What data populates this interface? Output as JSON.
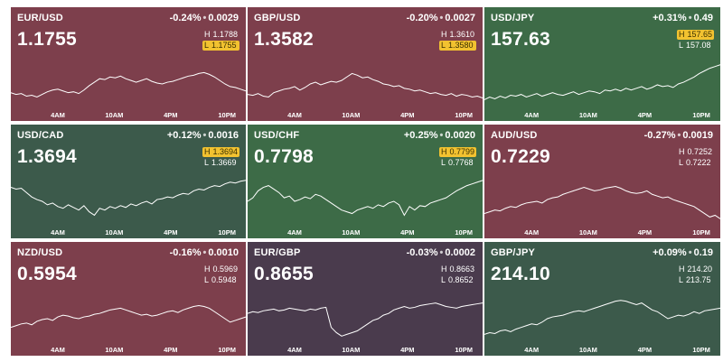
{
  "colors": {
    "down": "#7d3f4c",
    "up": "#3d6b47",
    "flat": "#4a3b4d"
  },
  "axis_labels": [
    "4AM",
    "10AM",
    "4PM",
    "10PM"
  ],
  "tiles": [
    {
      "symbol": "EUR/USD",
      "change_pct": "-0.24%",
      "change_abs": "0.0029",
      "price": "1.1755",
      "high_label": "H",
      "high": "1.1788",
      "low_label": "L",
      "low": "1.1755",
      "highlight": "low",
      "tone": "down",
      "trend": [
        40,
        42,
        41,
        44,
        43,
        45,
        42,
        39,
        37,
        36,
        38,
        40,
        39,
        41,
        37,
        32,
        28,
        24,
        25,
        22,
        23,
        21,
        24,
        26,
        28,
        26,
        24,
        27,
        29,
        30,
        28,
        27,
        25,
        23,
        21,
        20,
        18,
        17,
        19,
        22,
        26,
        30,
        33,
        34,
        36,
        38
      ]
    },
    {
      "symbol": "GBP/USD",
      "change_pct": "-0.20%",
      "change_abs": "0.0027",
      "price": "1.3582",
      "high_label": "H",
      "high": "1.3610",
      "low_label": "L",
      "low": "1.3580",
      "highlight": "low",
      "tone": "down",
      "trend": [
        42,
        43,
        41,
        44,
        45,
        40,
        38,
        36,
        35,
        33,
        37,
        34,
        30,
        28,
        31,
        29,
        27,
        28,
        26,
        22,
        18,
        20,
        23,
        22,
        25,
        27,
        30,
        31,
        33,
        32,
        35,
        36,
        38,
        37,
        39,
        41,
        40,
        42,
        43,
        41,
        44,
        42,
        43,
        45,
        44,
        46
      ]
    },
    {
      "symbol": "USD/JPY",
      "change_pct": "+0.31%",
      "change_abs": "0.49",
      "price": "157.63",
      "high_label": "H",
      "high": "157.65",
      "low_label": "L",
      "low": "157.08",
      "highlight": "high",
      "tone": "up",
      "trend": [
        48,
        45,
        47,
        44,
        46,
        43,
        44,
        42,
        45,
        43,
        41,
        44,
        42,
        40,
        42,
        43,
        41,
        39,
        42,
        40,
        38,
        39,
        41,
        37,
        38,
        36,
        38,
        35,
        37,
        35,
        33,
        36,
        34,
        31,
        33,
        32,
        34,
        30,
        28,
        25,
        22,
        18,
        15,
        12,
        10,
        8
      ]
    },
    {
      "symbol": "USD/CAD",
      "change_pct": "+0.12%",
      "change_abs": "0.0016",
      "price": "1.3694",
      "high_label": "H",
      "high": "1.3694",
      "low_label": "L",
      "low": "1.3669",
      "highlight": "high",
      "tone": "flat2",
      "trend": [
        14,
        16,
        15,
        20,
        25,
        28,
        30,
        34,
        32,
        36,
        38,
        34,
        37,
        40,
        35,
        42,
        46,
        38,
        40,
        36,
        38,
        35,
        37,
        33,
        35,
        32,
        30,
        33,
        28,
        27,
        25,
        26,
        23,
        21,
        22,
        18,
        16,
        17,
        14,
        12,
        13,
        10,
        8,
        9,
        7,
        6
      ]
    },
    {
      "symbol": "USD/CHF",
      "change_pct": "+0.25%",
      "change_abs": "0.0020",
      "price": "0.7798",
      "high_label": "H",
      "high": "0.7799",
      "low_label": "L",
      "low": "0.7768",
      "highlight": "high",
      "tone": "up",
      "trend": [
        30,
        26,
        18,
        14,
        12,
        16,
        20,
        26,
        24,
        30,
        28,
        25,
        27,
        22,
        24,
        28,
        32,
        36,
        40,
        42,
        44,
        40,
        38,
        36,
        38,
        34,
        36,
        32,
        30,
        34,
        46,
        36,
        40,
        35,
        36,
        32,
        30,
        28,
        26,
        22,
        18,
        15,
        12,
        10,
        8,
        6
      ]
    },
    {
      "symbol": "AUD/USD",
      "change_pct": "-0.27%",
      "change_abs": "0.0019",
      "price": "0.7229",
      "high_label": "H",
      "high": "0.7252",
      "low_label": "L",
      "low": "0.7222",
      "highlight": "none",
      "tone": "down",
      "trend": [
        44,
        42,
        40,
        41,
        38,
        36,
        37,
        34,
        32,
        31,
        30,
        32,
        28,
        26,
        25,
        22,
        20,
        18,
        16,
        14,
        16,
        18,
        17,
        15,
        14,
        13,
        15,
        18,
        20,
        21,
        20,
        18,
        22,
        24,
        26,
        25,
        28,
        30,
        32,
        34,
        36,
        40,
        44,
        48,
        46,
        50
      ]
    },
    {
      "symbol": "NZD/USD",
      "change_pct": "-0.16%",
      "change_abs": "0.0010",
      "price": "0.5954",
      "high_label": "H",
      "high": "0.5969",
      "low_label": "L",
      "low": "0.5948",
      "highlight": "none",
      "tone": "down",
      "trend": [
        40,
        38,
        36,
        35,
        37,
        33,
        31,
        30,
        32,
        28,
        26,
        27,
        29,
        30,
        28,
        27,
        25,
        24,
        22,
        20,
        19,
        18,
        20,
        22,
        24,
        26,
        25,
        27,
        26,
        24,
        22,
        21,
        23,
        20,
        18,
        16,
        15,
        16,
        18,
        22,
        26,
        30,
        34,
        32,
        30,
        28
      ]
    },
    {
      "symbol": "EUR/GBP",
      "change_pct": "-0.03%",
      "change_abs": "0.0002",
      "price": "0.8655",
      "high_label": "H",
      "high": "0.8663",
      "low_label": "L",
      "low": "0.8652",
      "highlight": "none",
      "tone": "flat",
      "trend": [
        24,
        22,
        23,
        21,
        20,
        19,
        21,
        20,
        18,
        19,
        20,
        21,
        19,
        20,
        18,
        17,
        40,
        46,
        50,
        48,
        46,
        44,
        40,
        36,
        32,
        30,
        26,
        24,
        20,
        18,
        16,
        18,
        17,
        15,
        14,
        13,
        12,
        14,
        16,
        17,
        18,
        16,
        15,
        14,
        13,
        12
      ]
    },
    {
      "symbol": "GBP/JPY",
      "change_pct": "+0.09%",
      "change_abs": "0.19",
      "price": "214.10",
      "high_label": "H",
      "high": "214.20",
      "low_label": "L",
      "low": "213.75",
      "highlight": "none",
      "tone": "flat2",
      "trend": [
        48,
        46,
        47,
        44,
        43,
        45,
        42,
        40,
        38,
        36,
        37,
        34,
        30,
        28,
        27,
        26,
        24,
        22,
        21,
        22,
        20,
        18,
        16,
        14,
        12,
        10,
        9,
        10,
        12,
        14,
        12,
        16,
        20,
        22,
        26,
        30,
        28,
        26,
        27,
        25,
        22,
        24,
        21,
        20,
        19,
        18
      ]
    }
  ]
}
